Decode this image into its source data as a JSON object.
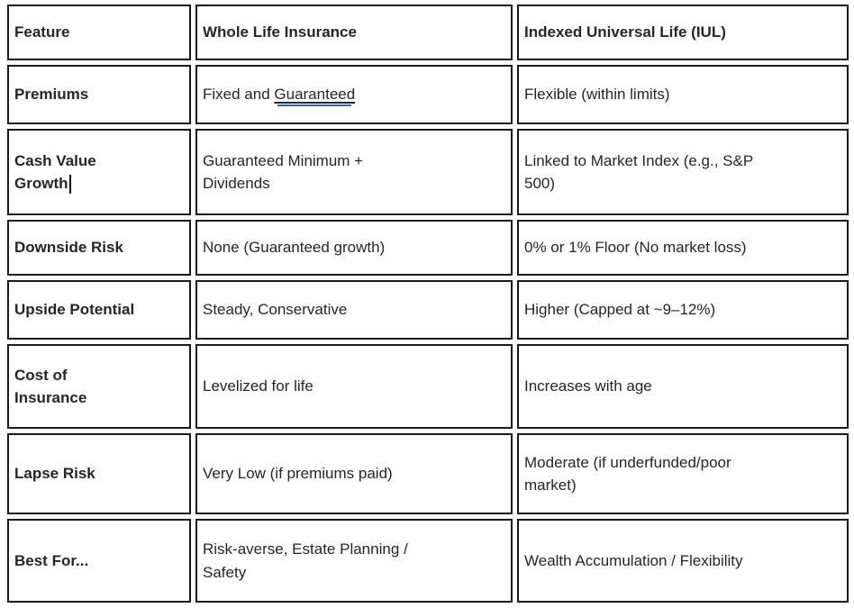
{
  "theme": {
    "page_bg": "#ffffff",
    "border_color": "#1a1a1a",
    "text_color": "#262626",
    "link_underline_color": "#2b66c9"
  },
  "table": {
    "columns": [
      "Feature",
      "Whole Life Insurance",
      "Indexed Universal Life (IUL)"
    ],
    "rows": [
      {
        "feature": "Premiums",
        "whole_life_prefix": "Fixed and ",
        "whole_life_link": "Guaranteed",
        "iul": "Flexible (within limits)"
      },
      {
        "feature": "Cash Value\nGrowth",
        "whole_life": "Guaranteed Minimum +\nDividends",
        "iul": "Linked to Market Index (e.g., S&P\n500)"
      },
      {
        "feature": "Downside Risk",
        "whole_life": "None (Guaranteed growth)",
        "iul": "0% or 1% Floor (No market loss)"
      },
      {
        "feature": "Upside Potential",
        "whole_life": "Steady, Conservative",
        "iul": "Higher (Capped at ~9–12%)"
      },
      {
        "feature": "Cost of\nInsurance",
        "whole_life": "Levelized for life",
        "iul": "Increases with age"
      },
      {
        "feature": "Lapse Risk",
        "whole_life": "Very Low (if premiums paid)",
        "iul": "Moderate (if underfunded/poor\nmarket)"
      },
      {
        "feature": "Best For...",
        "whole_life": "Risk-averse, Estate Planning /\nSafety",
        "iul": "Wealth Accumulation / Flexibility"
      }
    ]
  },
  "editor": {
    "caret_after_text": "Growth"
  }
}
